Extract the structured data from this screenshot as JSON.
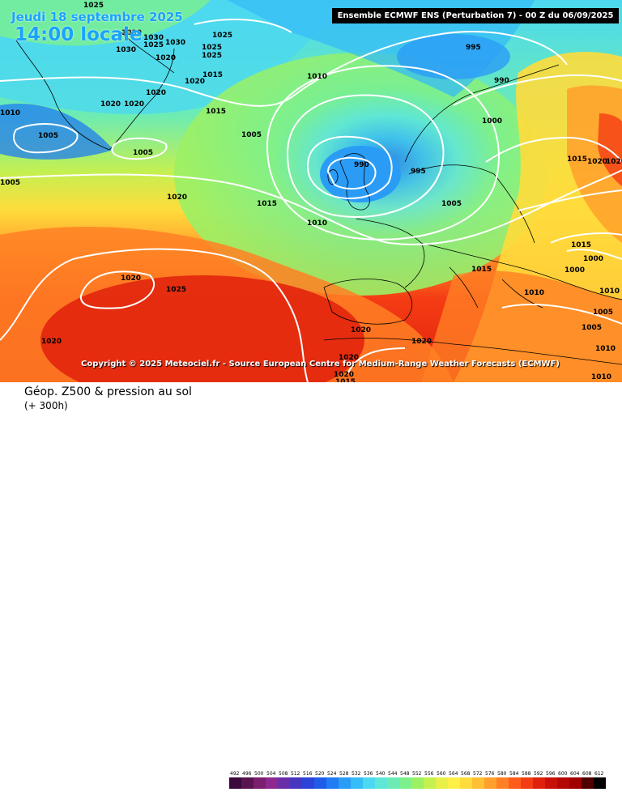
{
  "header": {
    "date_text": "Jeudi 18 septembre 2025",
    "time_text": "14:00 locale",
    "run_info": "Ensemble ECMWF ENS  (Perturbation 7)  -  00 Z du 06/09/2025"
  },
  "copyright": "Copyright © 2025 Meteociel.fr - Source European Centre for Medium-Range Weather Forecasts (ECMWF)",
  "footer": {
    "title": "Géop. Z500 & pression au sol",
    "subtitle": "(+ 300h)"
  },
  "legend": {
    "ticks": [
      "492",
      "496",
      "500",
      "504",
      "508",
      "512",
      "516",
      "520",
      "524",
      "528",
      "532",
      "536",
      "540",
      "544",
      "548",
      "552",
      "556",
      "560",
      "564",
      "568",
      "572",
      "576",
      "580",
      "584",
      "588",
      "592",
      "596",
      "600",
      "604",
      "608",
      "612"
    ],
    "colors": [
      "#3c0a3c",
      "#5a1450",
      "#7a1e6e",
      "#8c2890",
      "#6a2ea8",
      "#4636c0",
      "#2c44d8",
      "#1f5ce8",
      "#1f7cf2",
      "#2a9cf6",
      "#36bcf6",
      "#4cd8f0",
      "#5ee6d8",
      "#6cecb4",
      "#7cf08c",
      "#9cf064",
      "#c4f050",
      "#e8f048",
      "#fff048",
      "#ffdc3c",
      "#ffc034",
      "#ffa02c",
      "#ff8024",
      "#ff5c1c",
      "#f43c14",
      "#e0200c",
      "#c81008",
      "#b40804",
      "#a00000",
      "#500000",
      "#000000"
    ]
  },
  "map": {
    "isobars": [
      {
        "label": "1025"
      },
      {
        "label": "1030"
      },
      {
        "label": "1030"
      },
      {
        "label": "1030"
      },
      {
        "label": "1030"
      },
      {
        "label": "1025"
      },
      {
        "label": "1020"
      },
      {
        "label": "1025"
      },
      {
        "label": "1025"
      },
      {
        "label": "1025"
      },
      {
        "label": "1020"
      },
      {
        "label": "1020"
      },
      {
        "label": "1020"
      },
      {
        "label": "1020"
      },
      {
        "label": "1010"
      },
      {
        "label": "1005"
      },
      {
        "label": "1005"
      },
      {
        "label": "1015"
      },
      {
        "label": "1005"
      },
      {
        "label": "1010"
      },
      {
        "label": "995"
      },
      {
        "label": "990"
      },
      {
        "label": "1000"
      },
      {
        "label": "990"
      },
      {
        "label": "995"
      },
      {
        "label": "1005"
      },
      {
        "label": "1015"
      },
      {
        "label": "1020"
      },
      {
        "label": "1005"
      },
      {
        "label": "1020"
      },
      {
        "label": "1015"
      },
      {
        "label": "1010"
      },
      {
        "label": "1015"
      },
      {
        "label": "1020"
      },
      {
        "label": "1025"
      },
      {
        "label": "1020"
      },
      {
        "label": "1015"
      },
      {
        "label": "1000"
      },
      {
        "label": "1000"
      },
      {
        "label": "1010"
      },
      {
        "label": "1005"
      },
      {
        "label": "1020"
      },
      {
        "label": "1020"
      },
      {
        "label": "1020"
      },
      {
        "label": "1010"
      },
      {
        "label": "1010"
      },
      {
        "label": "1015"
      },
      {
        "label": "1005"
      },
      {
        "label": "1010"
      },
      {
        "label": "1020"
      },
      {
        "label": "1015"
      },
      {
        "label": "1020"
      }
    ]
  }
}
